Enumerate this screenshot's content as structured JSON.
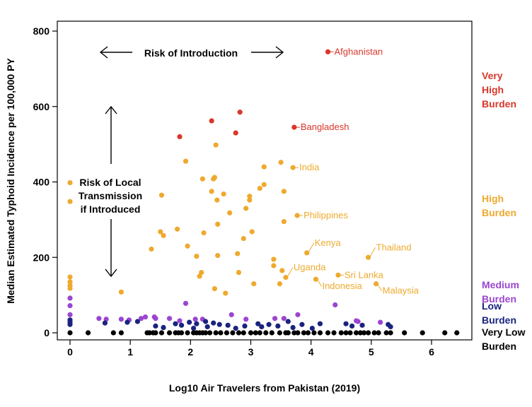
{
  "colors": {
    "very_high": "#d9372a",
    "high": "#eeaa2e",
    "medium": "#9b45d1",
    "low": "#1a237e",
    "very_low": "#000000"
  },
  "chart_data": {
    "type": "scatter",
    "title": "",
    "xlabel": "Log10 Air Travelers from Pakistan (2019)",
    "ylabel": "Median Estimated Typhoid Incidence per 100,000 PY",
    "xlim": [
      -0.2,
      6.6
    ],
    "ylim": [
      -20,
      800
    ],
    "x_ticks": [
      {
        "value": 0,
        "label": "0"
      },
      {
        "value": 1,
        "label": "1"
      },
      {
        "value": 2,
        "label": "2"
      },
      {
        "value": 3,
        "label": "3"
      },
      {
        "value": 4,
        "label": "4"
      },
      {
        "value": 5,
        "label": "5"
      },
      {
        "value": 6,
        "label": "6"
      }
    ],
    "y_ticks": [
      {
        "value": 0,
        "label": "0"
      },
      {
        "value": 200,
        "label": "200"
      },
      {
        "value": 400,
        "label": "400"
      },
      {
        "value": 600,
        "label": "600"
      },
      {
        "value": 800,
        "label": "800"
      }
    ],
    "annotations": {
      "introduction": "Risk of Introduction",
      "local_line1": "Risk of Local",
      "local_line2": "Transmission",
      "local_line3": "if Introduced"
    },
    "legend": [
      {
        "key": "very_high",
        "lines": [
          "Very",
          "High",
          "Burden"
        ],
        "y": 640
      },
      {
        "key": "high",
        "lines": [
          "High",
          "Burden"
        ],
        "y": 335
      },
      {
        "key": "medium",
        "lines": [
          "Medium",
          "Burden"
        ],
        "y": 110
      },
      {
        "key": "low",
        "lines": [
          "Low",
          "Burden"
        ],
        "y": 55
      },
      {
        "key": "very_low",
        "lines": [
          "Very Low",
          "Burden"
        ],
        "y": 5
      }
    ],
    "labeled_points": [
      {
        "name": "Afghanistan",
        "x": 4.28,
        "y": 745,
        "series": "very_high"
      },
      {
        "name": "Bangladesh",
        "x": 3.72,
        "y": 545,
        "series": "very_high"
      },
      {
        "name": "India",
        "x": 3.7,
        "y": 438,
        "series": "high"
      },
      {
        "name": "Philippines",
        "x": 3.77,
        "y": 311,
        "series": "high"
      },
      {
        "name": "Kenya",
        "x": 3.93,
        "y": 212,
        "series": "high"
      },
      {
        "name": "Thailand",
        "x": 4.95,
        "y": 200,
        "series": "high"
      },
      {
        "name": "Uganda",
        "x": 3.58,
        "y": 147,
        "series": "high"
      },
      {
        "name": "Sri Lanka",
        "x": 4.45,
        "y": 153,
        "series": "high"
      },
      {
        "name": "Indonesia",
        "x": 4.08,
        "y": 142,
        "series": "high"
      },
      {
        "name": "Malaysia",
        "x": 5.08,
        "y": 130,
        "series": "high"
      }
    ],
    "series": [
      {
        "name": "Very High Burden",
        "key": "very_high",
        "points": [
          [
            1.82,
            520
          ],
          [
            2.35,
            562
          ],
          [
            2.75,
            530
          ],
          [
            2.82,
            585
          ]
        ]
      },
      {
        "name": "High Burden",
        "key": "high",
        "points": [
          [
            0,
            398
          ],
          [
            0,
            348
          ],
          [
            0,
            148
          ],
          [
            0,
            135
          ],
          [
            0,
            125
          ],
          [
            0,
            118
          ],
          [
            0.85,
            108
          ],
          [
            1.35,
            222
          ],
          [
            1.5,
            268
          ],
          [
            1.52,
            365
          ],
          [
            1.55,
            258
          ],
          [
            1.78,
            275
          ],
          [
            1.92,
            455
          ],
          [
            1.95,
            230
          ],
          [
            2.1,
            203
          ],
          [
            2.15,
            150
          ],
          [
            2.18,
            160
          ],
          [
            2.2,
            408
          ],
          [
            2.22,
            265
          ],
          [
            2.35,
            375
          ],
          [
            2.38,
            408
          ],
          [
            2.4,
            412
          ],
          [
            2.4,
            117
          ],
          [
            2.42,
            498
          ],
          [
            2.44,
            352
          ],
          [
            2.45,
            288
          ],
          [
            2.45,
            205
          ],
          [
            2.55,
            368
          ],
          [
            2.58,
            105
          ],
          [
            2.65,
            318
          ],
          [
            2.78,
            210
          ],
          [
            2.8,
            160
          ],
          [
            2.88,
            250
          ],
          [
            2.92,
            330
          ],
          [
            2.98,
            352
          ],
          [
            2.98,
            362
          ],
          [
            3.02,
            268
          ],
          [
            3.05,
            130
          ],
          [
            3.15,
            383
          ],
          [
            3.22,
            393
          ],
          [
            3.22,
            440
          ],
          [
            3.38,
            195
          ],
          [
            3.38,
            178
          ],
          [
            3.48,
            130
          ],
          [
            3.5,
            452
          ],
          [
            3.52,
            165
          ],
          [
            3.55,
            375
          ],
          [
            3.55,
            295
          ]
        ]
      },
      {
        "name": "Medium Burden",
        "key": "medium",
        "points": [
          [
            0,
            92
          ],
          [
            0,
            72
          ],
          [
            0,
            48
          ],
          [
            0.48,
            38
          ],
          [
            0.6,
            36
          ],
          [
            0.85,
            36
          ],
          [
            0.98,
            34
          ],
          [
            1.18,
            38
          ],
          [
            1.25,
            42
          ],
          [
            1.4,
            42
          ],
          [
            1.42,
            38
          ],
          [
            1.65,
            38
          ],
          [
            1.82,
            32
          ],
          [
            1.92,
            78
          ],
          [
            2.08,
            36
          ],
          [
            2.2,
            36
          ],
          [
            2.68,
            48
          ],
          [
            2.92,
            36
          ],
          [
            3.4,
            38
          ],
          [
            3.55,
            38
          ],
          [
            3.78,
            48
          ],
          [
            4.4,
            74
          ],
          [
            4.75,
            32
          ],
          [
            4.78,
            30
          ],
          [
            5.15,
            28
          ]
        ]
      },
      {
        "name": "Low Burden",
        "key": "low",
        "points": [
          [
            0,
            22
          ],
          [
            0,
            28
          ],
          [
            0,
            34
          ],
          [
            0.58,
            26
          ],
          [
            0.95,
            28
          ],
          [
            1.12,
            30
          ],
          [
            1.42,
            18
          ],
          [
            1.55,
            14
          ],
          [
            1.75,
            24
          ],
          [
            1.85,
            20
          ],
          [
            1.98,
            28
          ],
          [
            2.05,
            12
          ],
          [
            2.1,
            24
          ],
          [
            2.25,
            30
          ],
          [
            2.28,
            16
          ],
          [
            2.38,
            26
          ],
          [
            2.48,
            22
          ],
          [
            2.62,
            20
          ],
          [
            2.75,
            12
          ],
          [
            2.9,
            18
          ],
          [
            3.12,
            24
          ],
          [
            3.18,
            16
          ],
          [
            3.3,
            22
          ],
          [
            3.45,
            18
          ],
          [
            3.62,
            30
          ],
          [
            3.7,
            14
          ],
          [
            3.85,
            22
          ],
          [
            4.02,
            12
          ],
          [
            4.15,
            24
          ],
          [
            4.58,
            24
          ],
          [
            4.68,
            18
          ],
          [
            4.85,
            20
          ],
          [
            5.28,
            22
          ],
          [
            5.32,
            16
          ]
        ]
      },
      {
        "name": "Very Low Burden",
        "key": "very_low",
        "points": [
          [
            0,
            0
          ],
          [
            0.3,
            0
          ],
          [
            0.72,
            0
          ],
          [
            0.85,
            0
          ],
          [
            1.28,
            0
          ],
          [
            1.32,
            0
          ],
          [
            1.38,
            0
          ],
          [
            1.42,
            0
          ],
          [
            1.52,
            0
          ],
          [
            1.65,
            0
          ],
          [
            1.75,
            0
          ],
          [
            1.8,
            0
          ],
          [
            1.85,
            0
          ],
          [
            1.95,
            0
          ],
          [
            2.05,
            0
          ],
          [
            2.1,
            0
          ],
          [
            2.15,
            0
          ],
          [
            2.2,
            0
          ],
          [
            2.25,
            0
          ],
          [
            2.32,
            0
          ],
          [
            2.42,
            0
          ],
          [
            2.5,
            0
          ],
          [
            2.6,
            0
          ],
          [
            2.7,
            0
          ],
          [
            2.8,
            0
          ],
          [
            2.88,
            0
          ],
          [
            3.0,
            0
          ],
          [
            3.08,
            0
          ],
          [
            3.15,
            0
          ],
          [
            3.25,
            0
          ],
          [
            3.35,
            0
          ],
          [
            3.48,
            0
          ],
          [
            3.58,
            0
          ],
          [
            3.62,
            0
          ],
          [
            3.72,
            0
          ],
          [
            3.78,
            0
          ],
          [
            3.88,
            0
          ],
          [
            3.95,
            0
          ],
          [
            4.05,
            0
          ],
          [
            4.15,
            0
          ],
          [
            4.28,
            0
          ],
          [
            4.38,
            0
          ],
          [
            4.5,
            0
          ],
          [
            4.58,
            0
          ],
          [
            4.65,
            0
          ],
          [
            4.75,
            0
          ],
          [
            4.82,
            0
          ],
          [
            4.88,
            0
          ],
          [
            4.95,
            0
          ],
          [
            5.05,
            0
          ],
          [
            5.12,
            0
          ],
          [
            5.25,
            0
          ],
          [
            5.32,
            0
          ],
          [
            5.55,
            0
          ],
          [
            5.85,
            0
          ],
          [
            6.22,
            0
          ],
          [
            6.42,
            0
          ]
        ]
      }
    ]
  }
}
